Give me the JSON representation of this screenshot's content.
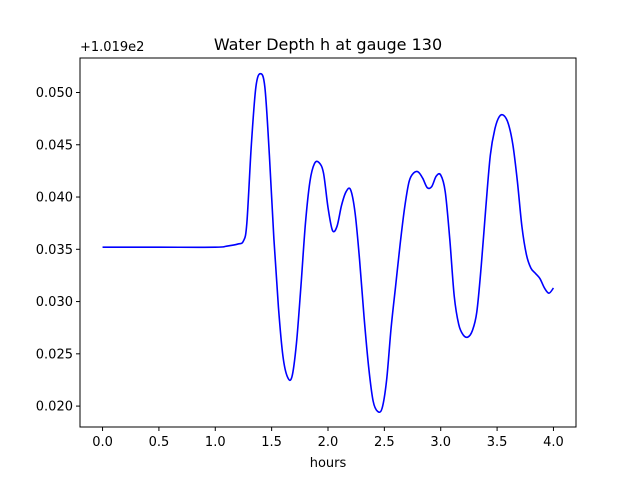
{
  "chart_data": {
    "type": "line",
    "title": "Water Depth h at gauge 130",
    "xlabel": "hours",
    "ylabel": "",
    "y_offset_label": "+1.019e2",
    "xlim": [
      -0.2,
      4.2
    ],
    "ylim": [
      0.018,
      0.0533
    ],
    "x_ticks": [
      0.0,
      0.5,
      1.0,
      1.5,
      2.0,
      2.5,
      3.0,
      3.5,
      4.0
    ],
    "x_tick_labels": [
      "0.0",
      "0.5",
      "1.0",
      "1.5",
      "2.0",
      "2.5",
      "3.0",
      "3.5",
      "4.0"
    ],
    "y_ticks": [
      0.02,
      0.025,
      0.03,
      0.035,
      0.04,
      0.045,
      0.05
    ],
    "y_tick_labels": [
      "0.020",
      "0.025",
      "0.030",
      "0.035",
      "0.040",
      "0.045",
      "0.050"
    ],
    "grid": false,
    "series": [
      {
        "color": "#0000ff",
        "x": [
          0.0,
          0.5,
          1.0,
          1.1,
          1.2,
          1.25,
          1.28,
          1.32,
          1.36,
          1.4,
          1.44,
          1.48,
          1.52,
          1.56,
          1.6,
          1.64,
          1.68,
          1.72,
          1.76,
          1.8,
          1.84,
          1.88,
          1.92,
          1.96,
          2.0,
          2.04,
          2.08,
          2.12,
          2.16,
          2.2,
          2.24,
          2.28,
          2.32,
          2.36,
          2.4,
          2.44,
          2.48,
          2.52,
          2.56,
          2.6,
          2.64,
          2.68,
          2.72,
          2.76,
          2.8,
          2.84,
          2.88,
          2.92,
          2.96,
          3.0,
          3.04,
          3.08,
          3.12,
          3.16,
          3.2,
          3.24,
          3.28,
          3.32,
          3.36,
          3.4,
          3.44,
          3.48,
          3.52,
          3.56,
          3.6,
          3.64,
          3.68,
          3.72,
          3.76,
          3.8,
          3.84,
          3.88,
          3.92,
          3.96,
          4.0
        ],
        "values": [
          0.0352,
          0.0352,
          0.0352,
          0.0353,
          0.0355,
          0.0358,
          0.0375,
          0.045,
          0.0505,
          0.0518,
          0.0505,
          0.044,
          0.036,
          0.0295,
          0.0248,
          0.0228,
          0.0228,
          0.026,
          0.0315,
          0.0375,
          0.0415,
          0.0432,
          0.0433,
          0.0423,
          0.039,
          0.0368,
          0.0372,
          0.0392,
          0.0405,
          0.0407,
          0.0385,
          0.034,
          0.0285,
          0.0238,
          0.0205,
          0.0195,
          0.0198,
          0.0225,
          0.0275,
          0.0315,
          0.0355,
          0.039,
          0.0415,
          0.0423,
          0.0424,
          0.0418,
          0.0409,
          0.041,
          0.042,
          0.0421,
          0.0405,
          0.036,
          0.0305,
          0.0278,
          0.0268,
          0.0266,
          0.0272,
          0.029,
          0.0335,
          0.039,
          0.044,
          0.0465,
          0.0477,
          0.0478,
          0.047,
          0.045,
          0.0415,
          0.0372,
          0.0345,
          0.0332,
          0.0327,
          0.0322,
          0.0313,
          0.0308,
          0.0313
        ]
      }
    ]
  }
}
